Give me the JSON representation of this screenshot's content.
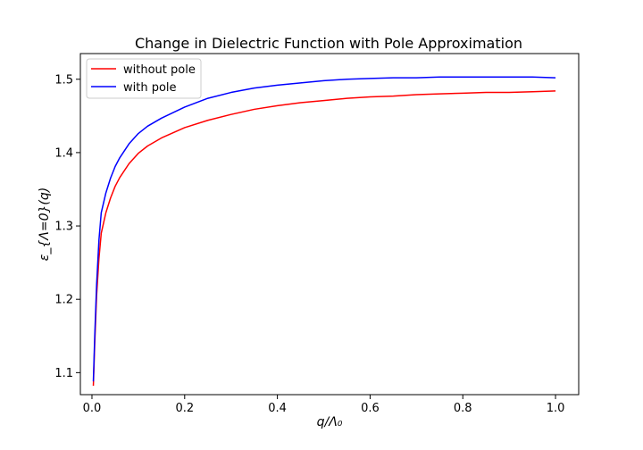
{
  "chart_data": {
    "type": "line",
    "title": "Change in Dielectric Function with Pole Approximation",
    "xlabel": "q/Λ₀",
    "ylabel": "ε_{Λ=0}(q)",
    "xlim": [
      -0.025,
      1.05
    ],
    "ylim": [
      1.07,
      1.535
    ],
    "x_ticks": [
      "0.0",
      "0.2",
      "0.4",
      "0.6",
      "0.8",
      "1.0"
    ],
    "y_ticks": [
      "1.1",
      "1.2",
      "1.3",
      "1.4",
      "1.5"
    ],
    "grid": false,
    "legend_position": "top-left",
    "x": [
      0.003,
      0.006,
      0.01,
      0.015,
      0.02,
      0.03,
      0.04,
      0.05,
      0.06,
      0.08,
      0.1,
      0.12,
      0.15,
      0.2,
      0.25,
      0.3,
      0.35,
      0.4,
      0.45,
      0.5,
      0.55,
      0.6,
      0.65,
      0.7,
      0.75,
      0.8,
      0.85,
      0.9,
      0.95,
      1.0
    ],
    "series": [
      {
        "name": "without pole",
        "color": "#ff0000",
        "values": [
          1.082,
          1.14,
          1.205,
          1.255,
          1.29,
          1.318,
          1.338,
          1.354,
          1.366,
          1.385,
          1.399,
          1.409,
          1.42,
          1.434,
          1.444,
          1.452,
          1.459,
          1.464,
          1.468,
          1.471,
          1.474,
          1.476,
          1.477,
          1.479,
          1.48,
          1.481,
          1.482,
          1.482,
          1.483,
          1.484
        ]
      },
      {
        "name": "with pole",
        "color": "#0000ff",
        "values": [
          1.088,
          1.15,
          1.22,
          1.28,
          1.318,
          1.345,
          1.365,
          1.381,
          1.393,
          1.412,
          1.426,
          1.436,
          1.447,
          1.462,
          1.474,
          1.482,
          1.488,
          1.492,
          1.495,
          1.498,
          1.5,
          1.501,
          1.502,
          1.502,
          1.503,
          1.503,
          1.503,
          1.503,
          1.503,
          1.502
        ]
      }
    ]
  }
}
